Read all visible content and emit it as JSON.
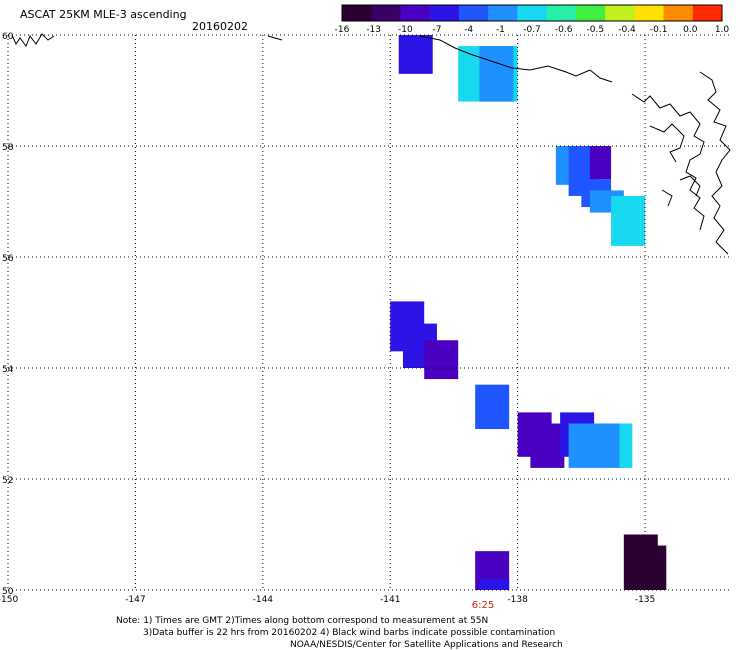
{
  "header": {
    "title": "ASCAT 25KM MLE-3 ascending",
    "date": "20160202"
  },
  "colorbar": {
    "ticks": [
      "-16",
      "-13",
      "-10",
      "-7",
      "-4",
      "-1",
      "-0.7",
      "-0.6",
      "-0.5",
      "-0.4",
      "-0.1",
      "0.0",
      "1.0"
    ],
    "colors": [
      "#2a0030",
      "#3a0068",
      "#4a00c0",
      "#2d14e6",
      "#1f56ff",
      "#1e90ff",
      "#18d8f0",
      "#28f0a8",
      "#40f040",
      "#c0f020",
      "#ffe000",
      "#ff8c00",
      "#ff2a00"
    ]
  },
  "map": {
    "lon_range": [
      -150,
      -133
    ],
    "lat_range": [
      50,
      60
    ],
    "x_tick_labels": [
      "-150",
      "-147",
      "-144",
      "-141",
      "-138",
      "-135"
    ],
    "y_tick_labels": [
      "50",
      "52",
      "54",
      "56",
      "58",
      "60"
    ],
    "time_label": "6:25",
    "time_label_color": "#cc2200"
  },
  "cells": [
    {
      "lon": [
        -140.8,
        -140.0
      ],
      "lat": [
        59.3,
        60.0
      ],
      "color": "#2d14e6"
    },
    {
      "lon": [
        -139.4,
        -138.0
      ],
      "lat": [
        58.8,
        59.8
      ],
      "color": "#18d8f0"
    },
    {
      "lon": [
        -138.9,
        -138.1
      ],
      "lat": [
        58.8,
        59.8
      ],
      "color": "#1e90ff"
    },
    {
      "lon": [
        -137.1,
        -136.3
      ],
      "lat": [
        57.3,
        58.0
      ],
      "color": "#1e90ff"
    },
    {
      "lon": [
        -136.8,
        -136.1
      ],
      "lat": [
        57.1,
        58.0
      ],
      "color": "#1f56ff"
    },
    {
      "lon": [
        -136.3,
        -135.8
      ],
      "lat": [
        57.4,
        58.0
      ],
      "color": "#4a00c0"
    },
    {
      "lon": [
        -136.5,
        -135.8
      ],
      "lat": [
        56.9,
        57.4
      ],
      "color": "#1f56ff"
    },
    {
      "lon": [
        -136.3,
        -135.5
      ],
      "lat": [
        56.8,
        57.2
      ],
      "color": "#1e90ff"
    },
    {
      "lon": [
        -135.8,
        -135.0
      ],
      "lat": [
        56.2,
        57.1
      ],
      "color": "#18d8f0"
    },
    {
      "lon": [
        -141.0,
        -140.2
      ],
      "lat": [
        54.3,
        55.2
      ],
      "color": "#2d14e6"
    },
    {
      "lon": [
        -140.7,
        -139.9
      ],
      "lat": [
        54.0,
        54.8
      ],
      "color": "#2d14e6"
    },
    {
      "lon": [
        -140.2,
        -139.4
      ],
      "lat": [
        53.8,
        54.5
      ],
      "color": "#4a00c0"
    },
    {
      "lon": [
        -139.0,
        -138.2
      ],
      "lat": [
        52.9,
        53.7
      ],
      "color": "#1f56ff"
    },
    {
      "lon": [
        -138.0,
        -137.2
      ],
      "lat": [
        52.4,
        53.2
      ],
      "color": "#4a00c0"
    },
    {
      "lon": [
        -137.7,
        -136.9
      ],
      "lat": [
        52.2,
        53.0
      ],
      "color": "#4a00c0"
    },
    {
      "lon": [
        -137.0,
        -136.2
      ],
      "lat": [
        52.4,
        53.2
      ],
      "color": "#2d14e6"
    },
    {
      "lon": [
        -136.8,
        -135.5
      ],
      "lat": [
        52.2,
        53.0
      ],
      "color": "#1e90ff"
    },
    {
      "lon": [
        -135.6,
        -135.3
      ],
      "lat": [
        52.2,
        53.0
      ],
      "color": "#18d8f0"
    },
    {
      "lon": [
        -139.0,
        -138.2
      ],
      "lat": [
        50.0,
        50.7
      ],
      "color": "#4a00c0"
    },
    {
      "lon": [
        -138.9,
        -138.2
      ],
      "lat": [
        50.0,
        50.2
      ],
      "color": "#2d14e6"
    },
    {
      "lon": [
        -135.5,
        -134.7
      ],
      "lat": [
        50.0,
        51.0
      ],
      "color": "#2a0030"
    },
    {
      "lon": [
        -134.8,
        -134.5
      ],
      "lat": [
        50.0,
        50.8
      ],
      "color": "#2a0030"
    }
  ],
  "notes": {
    "line1": "Note: 1) Times are GMT 2)Times along bottom correspond to measurement at 55N",
    "line2": "3)Data buffer is 22 hrs from 20160202 4) Black wind barbs indicate possible contamination",
    "line3": "NOAA/NESDIS/Center for Satellite Applications and Research"
  }
}
